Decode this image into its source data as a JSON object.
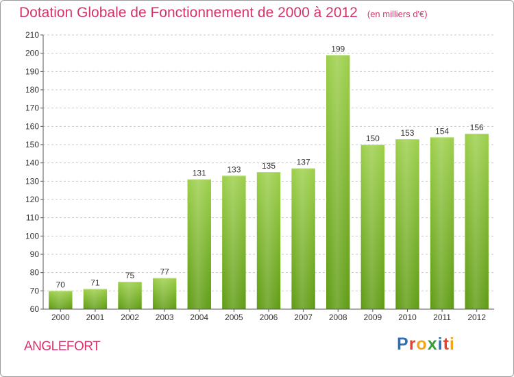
{
  "header": {
    "title": "Dotation Globale de Fonctionnement de 2000 à 2012",
    "unit": "(en milliers d'€)"
  },
  "footer": {
    "commune": "ANGLEFORT",
    "logo_text": "Proxiti",
    "logo_colors": [
      "#2d6eb5",
      "#e8412c",
      "#f2a51b",
      "#3a9c3a",
      "#2d6eb5",
      "#e8412c",
      "#f2a51b"
    ]
  },
  "colors": {
    "title": "#d2336b",
    "bar_fill_top": "#9ccf4a",
    "bar_fill_bottom": "#5e9b12",
    "grid": "#c8c8c8",
    "axis": "#555555"
  },
  "chart_data": {
    "type": "bar",
    "title": "Dotation Globale de Fonctionnement de 2000 à 2012",
    "xlabel": "",
    "ylabel": "",
    "categories": [
      "2000",
      "2001",
      "2002",
      "2003",
      "2004",
      "2005",
      "2006",
      "2007",
      "2008",
      "2009",
      "2010",
      "2011",
      "2012"
    ],
    "values": [
      70,
      71,
      75,
      77,
      131,
      133,
      135,
      137,
      199,
      150,
      153,
      154,
      156
    ],
    "ylim": [
      60,
      210
    ],
    "yticks": [
      60,
      70,
      80,
      90,
      100,
      110,
      120,
      130,
      140,
      150,
      160,
      170,
      180,
      190,
      200,
      210
    ],
    "grid": true,
    "data_labels": true
  }
}
